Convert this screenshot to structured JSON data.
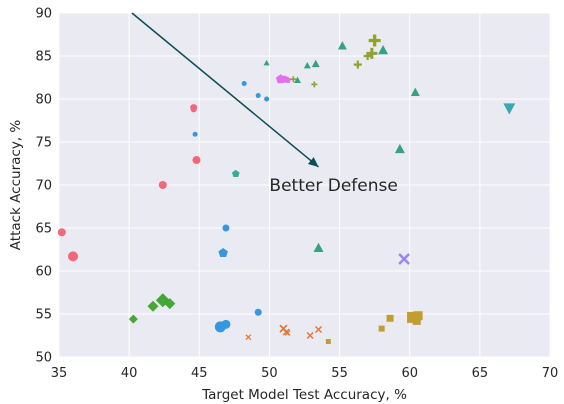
{
  "chart_data": {
    "type": "scatter",
    "title": "",
    "xlabel": "Target Model Test Accuracy, %",
    "ylabel": "Attack Accuracy, %",
    "xlim": [
      35,
      70
    ],
    "ylim": [
      50,
      90
    ],
    "xticks": [
      35,
      40,
      45,
      50,
      55,
      60,
      65,
      70
    ],
    "yticks": [
      50,
      55,
      60,
      65,
      70,
      75,
      80,
      85,
      90
    ],
    "grid": true,
    "background": "#eaeaf2",
    "annotation": {
      "text": "Better Defense",
      "arrow_from": [
        40.2,
        90
      ],
      "arrow_to": [
        53.5,
        72.1
      ],
      "text_at": [
        50.0,
        70.0
      ],
      "color": "#0b4f53"
    },
    "series": [
      {
        "marker": "circle",
        "color": "#f2677a",
        "points": [
          [
            35.2,
            64.5,
            4
          ],
          [
            36.0,
            61.7,
            5
          ],
          [
            42.4,
            70.0,
            4
          ],
          [
            44.8,
            72.9,
            4
          ],
          [
            44.6,
            79.0,
            3.5
          ],
          [
            44.6,
            78.8,
            3
          ]
        ]
      },
      {
        "marker": "circle",
        "color": "#3497e0",
        "points": [
          [
            44.7,
            75.9,
            2.5
          ],
          [
            46.5,
            53.5,
            5.5
          ],
          [
            46.9,
            53.8,
            4.5
          ],
          [
            46.9,
            65.0,
            3.5
          ],
          [
            49.2,
            55.2,
            3.5
          ],
          [
            48.2,
            81.8,
            2.5
          ],
          [
            49.2,
            80.4,
            2.5
          ],
          [
            49.8,
            80.0,
            2.5
          ]
        ]
      },
      {
        "marker": "pentagon",
        "color": "#3497e0",
        "points": [
          [
            46.7,
            62.1,
            5
          ]
        ]
      },
      {
        "marker": "pentagon",
        "color": "#34ad97",
        "points": [
          [
            47.6,
            71.3,
            4
          ]
        ]
      },
      {
        "marker": "triangle-up",
        "color": "#35a37f",
        "points": [
          [
            49.8,
            84.2,
            3
          ],
          [
            52.0,
            82.2,
            3.5
          ],
          [
            52.7,
            83.9,
            3.5
          ],
          [
            53.3,
            84.1,
            4
          ],
          [
            53.5,
            62.7,
            5
          ],
          [
            55.2,
            86.2,
            4.5
          ],
          [
            58.1,
            85.7,
            5
          ],
          [
            59.3,
            74.2,
            5
          ],
          [
            60.4,
            80.8,
            4.5
          ]
        ]
      },
      {
        "marker": "triangle-down",
        "color": "#3aa9ae",
        "points": [
          [
            67.1,
            78.9,
            6
          ]
        ]
      },
      {
        "marker": "pentagon",
        "color": "#e070ee",
        "points": [
          [
            50.8,
            82.3,
            5
          ],
          [
            51.1,
            82.3,
            4
          ],
          [
            51.3,
            82.2,
            3.5
          ]
        ]
      },
      {
        "marker": "plus",
        "color": "#91a32f",
        "points": [
          [
            51.7,
            82.3,
            3
          ],
          [
            53.2,
            81.7,
            3
          ],
          [
            56.3,
            84.0,
            4
          ],
          [
            57.0,
            85.0,
            4
          ],
          [
            57.3,
            85.3,
            5.5
          ],
          [
            57.5,
            86.8,
            6
          ]
        ]
      },
      {
        "marker": "diamond",
        "color": "#45a735",
        "points": [
          [
            40.3,
            54.4,
            4.5
          ],
          [
            41.7,
            55.9,
            5.5
          ],
          [
            42.4,
            56.6,
            7
          ],
          [
            42.9,
            56.2,
            5.5
          ]
        ]
      },
      {
        "marker": "x",
        "color": "#e67834",
        "points": [
          [
            48.5,
            52.3,
            2.5
          ],
          [
            51.0,
            53.3,
            3.5
          ],
          [
            51.2,
            52.9,
            3
          ],
          [
            51.3,
            52.8,
            2.5
          ],
          [
            52.9,
            52.5,
            3
          ],
          [
            53.5,
            53.2,
            3
          ]
        ]
      },
      {
        "marker": "square",
        "color": "#c29e31",
        "points": [
          [
            54.2,
            51.8,
            2.5
          ],
          [
            58.0,
            53.3,
            3
          ],
          [
            58.6,
            54.5,
            3.5
          ],
          [
            60.2,
            54.6,
            5.5
          ],
          [
            60.6,
            54.8,
            4.5
          ],
          [
            60.5,
            54.2,
            4
          ]
        ]
      },
      {
        "marker": "x",
        "color": "#9c85ed",
        "points": [
          [
            59.6,
            61.4,
            5
          ]
        ]
      }
    ]
  }
}
